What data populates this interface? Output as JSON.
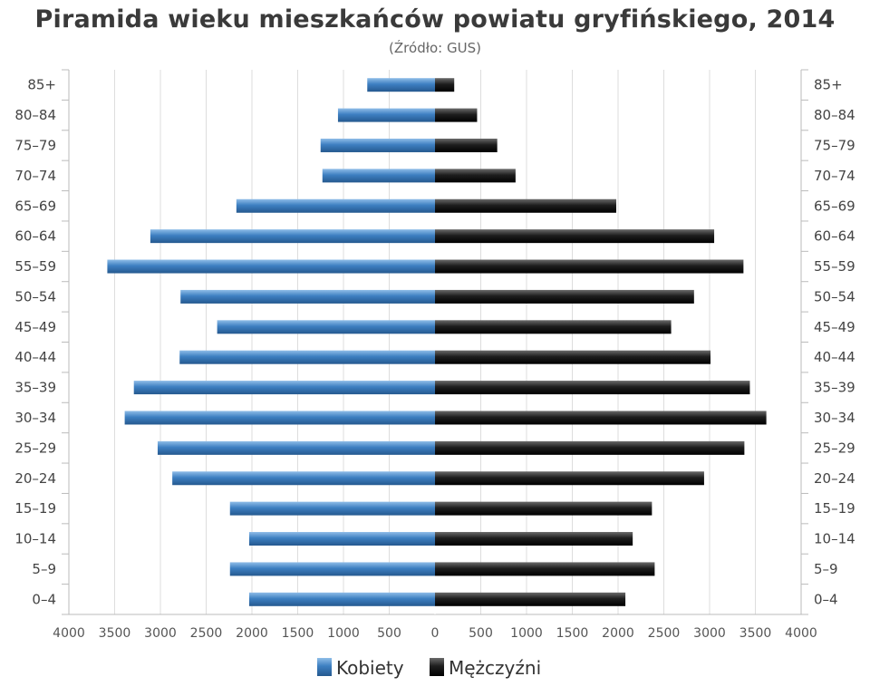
{
  "title": "Piramida wieku mieszkańców powiatu gryfińskiego, 2014",
  "subtitle": "(Źródło: GUS)",
  "colors": {
    "women": "#3d7fc1",
    "men": "#1e1e1e",
    "grid": "#dddddd",
    "axis": "#bbbbbb"
  },
  "chart_data": {
    "type": "bar",
    "orientation": "horizontal",
    "categories": [
      "0–4",
      "5–9",
      "10–14",
      "15–19",
      "20–24",
      "25–29",
      "30–34",
      "35–39",
      "40–44",
      "45–49",
      "50–54",
      "55–59",
      "60–64",
      "65–69",
      "70–74",
      "75–79",
      "80–84",
      "85+"
    ],
    "series": [
      {
        "name": "Kobiety",
        "side": "left",
        "values": [
          2030,
          2240,
          2030,
          2240,
          2870,
          3030,
          3390,
          3290,
          2790,
          2380,
          2780,
          3580,
          3110,
          2170,
          1230,
          1250,
          1060,
          740
        ]
      },
      {
        "name": "Mężczyźni",
        "side": "right",
        "values": [
          2080,
          2400,
          2160,
          2370,
          2940,
          3380,
          3620,
          3440,
          3010,
          2580,
          2830,
          3370,
          3050,
          1980,
          880,
          680,
          460,
          210
        ]
      }
    ],
    "x_ticks": [
      "4000",
      "3500",
      "3000",
      "2500",
      "2000",
      "1500",
      "1000",
      "500",
      "0",
      "500",
      "1000",
      "1500",
      "2000",
      "2500",
      "3000",
      "3500",
      "4000"
    ],
    "xlim": [
      -4000,
      4000
    ],
    "grid": true,
    "legend": "bottom-center",
    "category_labels_both_sides": true
  }
}
